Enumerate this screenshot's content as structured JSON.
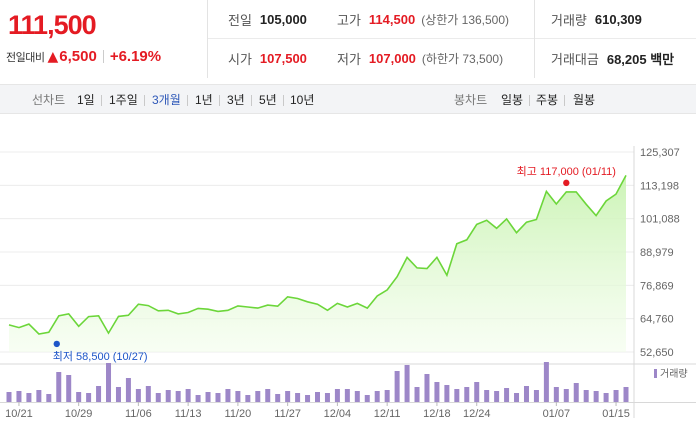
{
  "summary": {
    "current_price": "111,500",
    "change_label": "전일대비",
    "change_arrow": "▲",
    "change_value": "6,500",
    "change_percent": "+6.19%",
    "prev_close_label": "전일",
    "prev_close": "105,000",
    "high_label": "고가",
    "high": "114,500",
    "upper_limit": "(상한가 136,500)",
    "volume_label": "거래량",
    "volume": "610,309",
    "open_label": "시가",
    "open": "107,500",
    "low_label": "저가",
    "low": "107,000",
    "lower_limit": "(하한가 73,500)",
    "trade_value_label": "거래대금",
    "trade_value": "68,205 백만"
  },
  "line_tabs": {
    "header": "선차트",
    "items": [
      "1일",
      "1주일",
      "3개월",
      "1년",
      "3년",
      "5년",
      "10년"
    ],
    "active": "3개월"
  },
  "candle_tabs": {
    "header": "봉차트",
    "items": [
      "일봉",
      "주봉",
      "월봉"
    ]
  },
  "colors": {
    "up": "#e41b23",
    "active_tab": "#2e58b8",
    "line": "#6cd63a",
    "area_top": "#c9f3b2",
    "volume_bar": "#9d87c8",
    "low_marker": "#1e56c8",
    "high_marker": "#e41b23"
  },
  "chart_data": {
    "type": "area",
    "ylim": [
      52650,
      125307
    ],
    "y_ticks": [
      "125,307",
      "113,198",
      "101,088",
      "88,979",
      "76,869",
      "64,760",
      "52,650"
    ],
    "x_tick_labels": [
      "10/21",
      "10/29",
      "11/06",
      "11/13",
      "11/20",
      "11/27",
      "12/04",
      "12/11",
      "12/18",
      "12/24",
      "01/07",
      "01/15"
    ],
    "x_tick_index": [
      1,
      7,
      13,
      18,
      23,
      28,
      33,
      38,
      43,
      47,
      55,
      61
    ],
    "prices": [
      62500,
      61500,
      62800,
      59200,
      59800,
      65800,
      66500,
      62000,
      65500,
      65800,
      59500,
      65600,
      66000,
      70000,
      69500,
      67600,
      67800,
      66500,
      67000,
      68500,
      68200,
      67400,
      67800,
      69400,
      69000,
      68600,
      69700,
      69300,
      72700,
      72100,
      70900,
      70000,
      67800,
      70300,
      69000,
      70300,
      68600,
      73000,
      75200,
      80000,
      87000,
      83200,
      83000,
      87000,
      80500,
      92000,
      93400,
      99000,
      100500,
      97600,
      101000,
      96000,
      99800,
      100800,
      111000,
      106400,
      110800,
      110800,
      106300,
      102200,
      107500,
      110000,
      116800
    ],
    "volumes": [
      20,
      22,
      18,
      24,
      16,
      60,
      54,
      20,
      18,
      32,
      78,
      30,
      48,
      26,
      32,
      18,
      24,
      22,
      26,
      14,
      20,
      18,
      26,
      22,
      14,
      22,
      26,
      16,
      22,
      18,
      14,
      20,
      18,
      26,
      26,
      22,
      14,
      22,
      24,
      62,
      74,
      30,
      56,
      40,
      34,
      26,
      30,
      40,
      24,
      22,
      28,
      18,
      32,
      24,
      80,
      30,
      26,
      38,
      24,
      22,
      18,
      24,
      30
    ],
    "volume_legend": "거래량",
    "high_annotation": "최고 117,000 (01/11)",
    "high_value": 117000,
    "high_index": 56,
    "low_annotation": "최저 58,500 (10/27)",
    "low_value": 58500,
    "low_index": 5
  }
}
